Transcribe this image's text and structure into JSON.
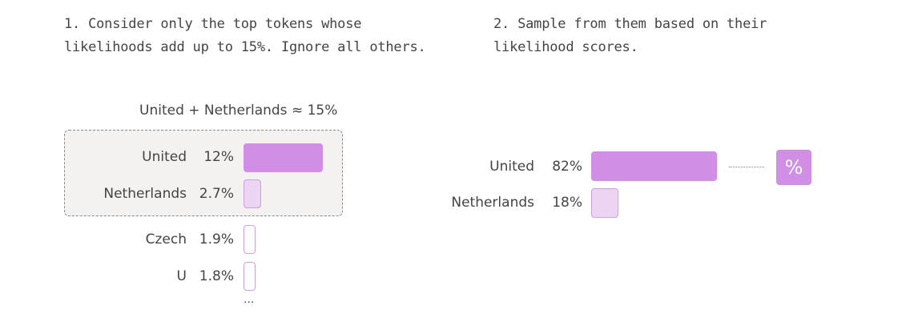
{
  "step1": {
    "line1": "1. Consider only the top tokens whose",
    "line2": "likelihoods add up to 15%. Ignore all others."
  },
  "step2": {
    "line1": "2. Sample from them based on their",
    "line2": "likelihood scores."
  },
  "group_label": "United + Netherlands ≈ 15%",
  "left_tokens": [
    {
      "name": "United",
      "pct": "12%",
      "value": 12
    },
    {
      "name": "Netherlands",
      "pct": "2.7%",
      "value": 2.7
    },
    {
      "name": "Czech",
      "pct": "1.9%",
      "value": 1.9
    },
    {
      "name": "U",
      "pct": "1.8%",
      "value": 1.8
    }
  ],
  "ellipsis": "...",
  "right_tokens": [
    {
      "name": "United",
      "pct": "82%",
      "value": 82
    },
    {
      "name": "Netherlands",
      "pct": "18%",
      "value": 18
    }
  ],
  "percent_icon": "%",
  "colors": {
    "bar_strong": "#d08ee4",
    "bar_light": "#ecd5f3",
    "bar_border": "#cf9ee3",
    "box_bg": "#f4f2f0"
  }
}
